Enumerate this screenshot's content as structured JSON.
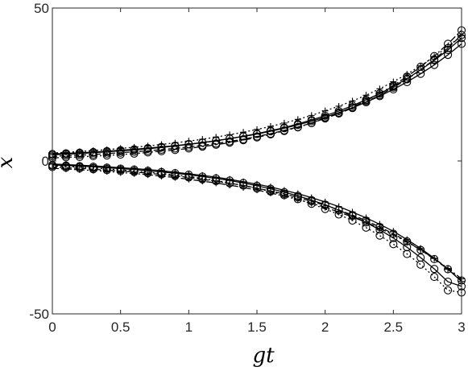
{
  "chart_data": {
    "type": "line",
    "title": "",
    "xlabel": "gt",
    "ylabel": "x",
    "xlim": [
      0,
      3
    ],
    "ylim": [
      -50,
      50
    ],
    "xticks": [
      0,
      0.5,
      1,
      1.5,
      2,
      2.5,
      3
    ],
    "xtick_labels": [
      "0",
      "0.5",
      "1",
      "1.5",
      "2",
      "2.5",
      "3"
    ],
    "yticks": [
      -50,
      0,
      50
    ],
    "ytick_labels": [
      "-50",
      "0",
      "50"
    ],
    "grid": false,
    "legend": "none",
    "x": [
      0,
      0.1,
      0.2,
      0.3,
      0.4,
      0.5,
      0.6,
      0.7,
      0.8,
      0.9,
      1.0,
      1.1,
      1.2,
      1.3,
      1.4,
      1.5,
      1.6,
      1.7,
      1.8,
      1.9,
      2.0,
      2.1,
      2.2,
      2.3,
      2.4,
      2.5,
      2.6,
      2.7,
      2.8,
      2.9,
      3.0
    ],
    "series": [
      {
        "values": [
          2.0,
          2.2,
          2.4,
          2.7,
          3.0,
          3.3,
          3.6,
          4.0,
          4.4,
          4.9,
          5.4,
          6.0,
          6.6,
          7.3,
          8.1,
          8.9,
          9.9,
          10.9,
          12.1,
          13.4,
          14.8,
          16.3,
          18.1,
          20.0,
          22.0,
          24.4,
          26.9,
          29.8,
          32.9,
          36.3,
          40.2
        ]
      },
      {
        "values": [
          1.5,
          1.7,
          1.9,
          2.1,
          2.4,
          2.7,
          3.0,
          3.3,
          3.7,
          4.1,
          4.6,
          5.1,
          5.7,
          6.4,
          7.1,
          8.0,
          8.9,
          10.0,
          11.1,
          12.4,
          13.9,
          15.5,
          17.3,
          19.3,
          21.5,
          24.0,
          26.7,
          29.8,
          33.2,
          36.9,
          41.2
        ]
      },
      {
        "values": [
          2.6,
          2.8,
          3.1,
          3.4,
          3.7,
          4.1,
          4.5,
          4.9,
          5.4,
          5.9,
          6.5,
          7.1,
          7.8,
          8.6,
          9.4,
          10.3,
          11.3,
          12.4,
          13.6,
          14.9,
          16.4,
          17.9,
          19.6,
          21.5,
          23.6,
          25.9,
          28.4,
          31.1,
          34.1,
          37.4,
          41.0
        ]
      },
      {
        "values": [
          1.0,
          1.2,
          1.3,
          1.6,
          1.8,
          2.1,
          2.4,
          2.8,
          3.2,
          3.6,
          4.1,
          4.7,
          5.3,
          6.0,
          6.8,
          7.7,
          8.7,
          9.8,
          11.0,
          12.4,
          14.0,
          15.7,
          17.6,
          19.7,
          22.1,
          24.7,
          27.6,
          30.8,
          34.3,
          38.3,
          42.7
        ]
      },
      {
        "values": [
          2.3,
          2.5,
          2.7,
          2.9,
          3.2,
          3.5,
          3.8,
          4.2,
          4.6,
          5.0,
          5.5,
          6.0,
          6.6,
          7.3,
          8.0,
          8.8,
          9.7,
          10.7,
          11.8,
          13.0,
          14.3,
          15.8,
          17.4,
          19.2,
          21.2,
          23.4,
          25.8,
          28.5,
          31.4,
          34.7,
          38.3
        ]
      },
      {
        "values": [
          -1.0,
          -1.2,
          -1.4,
          -1.6,
          -1.9,
          -2.2,
          -2.5,
          -2.8,
          -3.2,
          -3.7,
          -4.2,
          -4.7,
          -5.3,
          -6.0,
          -6.8,
          -7.6,
          -8.5,
          -9.6,
          -10.7,
          -12.0,
          -13.4,
          -14.9,
          -16.7,
          -18.6,
          -20.7,
          -23.0,
          -25.7,
          -28.6,
          -31.8,
          -35.4,
          -39.4
        ]
      },
      {
        "values": [
          -2.0,
          -2.2,
          -2.4,
          -2.7,
          -3.0,
          -3.3,
          -3.6,
          -4.0,
          -4.4,
          -4.9,
          -5.4,
          -6.0,
          -6.6,
          -7.3,
          -8.0,
          -8.9,
          -9.8,
          -10.8,
          -11.9,
          -13.2,
          -14.5,
          -16.0,
          -17.7,
          -19.5,
          -21.6,
          -23.8,
          -26.3,
          -29.1,
          -32.1,
          -35.4,
          -39.1
        ]
      },
      {
        "values": [
          -1.6,
          -1.8,
          -2.0,
          -2.3,
          -2.6,
          -2.9,
          -3.3,
          -3.6,
          -4.1,
          -4.6,
          -5.1,
          -5.7,
          -6.4,
          -7.2,
          -8.0,
          -9.0,
          -10.0,
          -11.2,
          -12.5,
          -14.0,
          -15.7,
          -17.5,
          -19.5,
          -21.8,
          -24.4,
          -27.2,
          -30.4,
          -33.9,
          -37.9,
          -42.3,
          -43.0
        ]
      },
      {
        "values": [
          -2.4,
          -2.6,
          -2.9,
          -3.1,
          -3.4,
          -3.8,
          -4.1,
          -4.5,
          -5.0,
          -5.4,
          -6.0,
          -6.6,
          -7.2,
          -7.9,
          -8.7,
          -9.5,
          -10.5,
          -11.5,
          -12.6,
          -13.8,
          -15.2,
          -16.7,
          -18.3,
          -20.1,
          -22.0,
          -24.2,
          -26.5,
          -29.1,
          -31.9,
          -35.1,
          -38.5
        ]
      },
      {
        "values": [
          -1.3,
          -1.5,
          -1.7,
          -1.9,
          -2.2,
          -2.5,
          -2.8,
          -3.2,
          -3.6,
          -4.0,
          -4.5,
          -5.1,
          -5.7,
          -6.4,
          -7.2,
          -8.1,
          -9.1,
          -10.2,
          -11.4,
          -12.8,
          -14.3,
          -16.1,
          -18.0,
          -20.1,
          -22.5,
          -25.2,
          -28.2,
          -31.6,
          -35.3,
          -39.5,
          -41.0
        ]
      }
    ]
  }
}
